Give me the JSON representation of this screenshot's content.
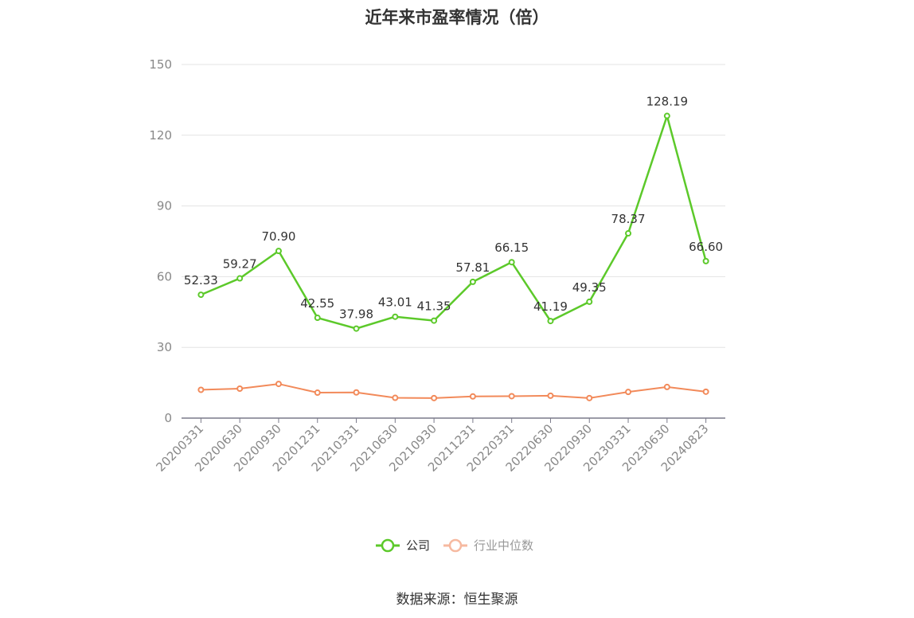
{
  "chart_data": {
    "type": "line",
    "title": "近年来市盈率情况（倍）",
    "categories": [
      "20200331",
      "20200630",
      "20200930",
      "20201231",
      "20210331",
      "20210630",
      "20210930",
      "20211231",
      "20220331",
      "20220630",
      "20220930",
      "20230331",
      "20230630",
      "20240823"
    ],
    "series": [
      {
        "name": "公司",
        "color": "#5cc92a",
        "values": [
          52.33,
          59.27,
          70.9,
          42.55,
          37.98,
          43.01,
          41.35,
          57.81,
          66.15,
          41.19,
          49.35,
          78.37,
          128.19,
          66.6
        ],
        "labels": [
          "52.33",
          "59.27",
          "70.90",
          "42.55",
          "37.98",
          "43.01",
          "41.35",
          "57.81",
          "66.15",
          "41.19",
          "49.35",
          "78.37",
          "128.19",
          "66.60"
        ]
      },
      {
        "name": "行业中位数",
        "color": "#f28a5a",
        "values": [
          12.0,
          12.5,
          14.5,
          10.8,
          10.9,
          8.6,
          8.5,
          9.2,
          9.3,
          9.5,
          8.5,
          11.1,
          13.2,
          11.2
        ]
      }
    ],
    "y_ticks": [
      "0",
      "30",
      "60",
      "90",
      "120",
      "150"
    ],
    "ylim": [
      0,
      150
    ],
    "grid": true,
    "legend": "bottom-center"
  },
  "footer": {
    "source": "数据来源：恒生聚源"
  }
}
